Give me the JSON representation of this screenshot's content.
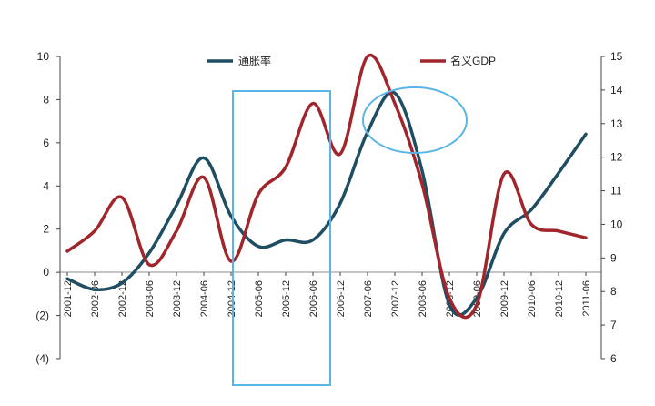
{
  "chart_data": {
    "type": "line",
    "legend": {
      "placement": "top-center"
    },
    "grid": false,
    "x": [
      "2001-12",
      "2002-06",
      "2002-12",
      "2003-06",
      "2003-12",
      "2004-06",
      "2004-12",
      "2005-06",
      "2005-12",
      "2006-06",
      "2006-12",
      "2007-06",
      "2007-12",
      "2008-06",
      "2008-12",
      "2009-06",
      "2009-12",
      "2010-06",
      "2010-12",
      "2011-06"
    ],
    "y_left": {
      "ylim": [
        -4,
        10
      ],
      "ticks": [
        {
          "value": 10,
          "label": "10",
          "color": "#222222"
        },
        {
          "value": 8,
          "label": "8",
          "color": "#222222"
        },
        {
          "value": 6,
          "label": "6",
          "color": "#222222"
        },
        {
          "value": 4,
          "label": "4",
          "color": "#222222"
        },
        {
          "value": 2,
          "label": "2",
          "color": "#222222"
        },
        {
          "value": 0,
          "label": "0",
          "color": "#222222"
        },
        {
          "value": -2,
          "label": "(2)",
          "color": "#a0262c"
        },
        {
          "value": -4,
          "label": "(4)",
          "color": "#a0262c"
        }
      ]
    },
    "y_right": {
      "ylim": [
        6,
        15
      ],
      "ticks": [
        "15",
        "14",
        "13",
        "12",
        "11",
        "10",
        "9",
        "8",
        "7",
        "6"
      ]
    },
    "series": [
      {
        "name": "通胀率",
        "axis": "left",
        "color": "#1f4e63",
        "values": [
          -0.3,
          -0.8,
          -0.5,
          0.9,
          3.1,
          5.3,
          2.6,
          1.2,
          1.5,
          1.5,
          3.2,
          6.5,
          8.3,
          4.7,
          -1.5,
          -1.2,
          1.8,
          2.9,
          4.6,
          6.4
        ]
      },
      {
        "name": "名义GDP",
        "axis": "right",
        "color": "#a0262c",
        "values": [
          9.2,
          9.8,
          10.8,
          8.8,
          9.8,
          11.4,
          8.9,
          10.9,
          11.7,
          13.6,
          12.1,
          15.0,
          13.6,
          11.2,
          7.8,
          7.6,
          11.5,
          10.0,
          9.8,
          9.6
        ]
      }
    ],
    "annotations": [
      {
        "type": "rect",
        "x_from": "2004-12",
        "x_to": "2006-06",
        "color": "#5ab4e6"
      },
      {
        "type": "ellipse",
        "around": "2008-06",
        "color": "#5ab4e6"
      }
    ]
  }
}
